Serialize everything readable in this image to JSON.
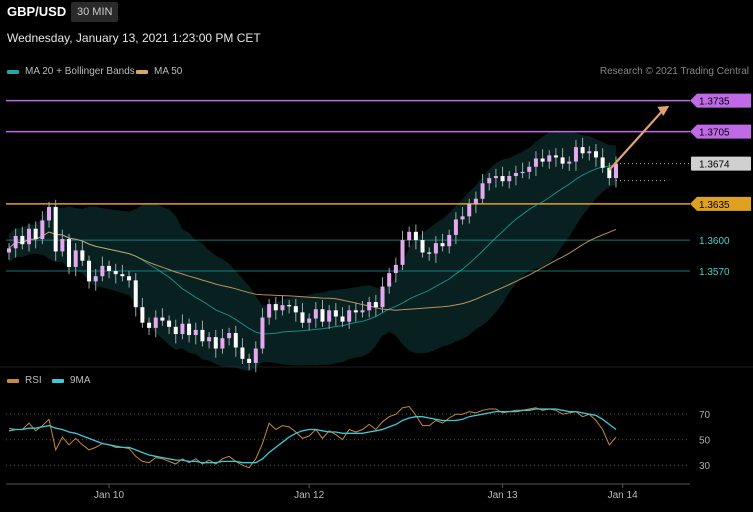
{
  "header": {
    "symbol": "GBP/USD",
    "timeframe": "30 MIN"
  },
  "timestamp": "Wednesday, January 13, 2021 1:23:00 PM CET",
  "legend": {
    "items": [
      {
        "label": "MA 20 + Bollinger Bands",
        "color": "#1aa9a3"
      },
      {
        "label": "MA 50",
        "color": "#d9a66b"
      }
    ],
    "credit": "Research © 2021 Trading Central"
  },
  "rsi_legend": {
    "items": [
      {
        "label": "RSI",
        "color": "#c8893f"
      },
      {
        "label": "9MA",
        "color": "#3cc9d8"
      }
    ]
  },
  "chart_data": [
    {
      "type": "candlestick",
      "title": "",
      "x_tick_labels": [
        "Jan 10",
        "Jan 12",
        "Jan 13",
        "Jan 14"
      ],
      "x_tick_index": [
        15,
        45,
        74,
        92
      ],
      "ylim": [
        1.348,
        1.3755
      ],
      "current_price": 1.3674,
      "levels": [
        {
          "value": 1.3735,
          "label": "1.3735",
          "type": "resistance",
          "color": "#c06ae8"
        },
        {
          "value": 1.3705,
          "label": "1.3705",
          "type": "resistance",
          "color": "#c06ae8"
        },
        {
          "value": 1.3674,
          "label": "1.3674",
          "type": "last",
          "color": "#d0d0d0"
        },
        {
          "value": 1.3635,
          "label": "1.3635",
          "type": "pivot",
          "color": "#e0a020"
        },
        {
          "value": 1.36,
          "label": "1.3600",
          "type": "support",
          "color": "#1aa9a3"
        },
        {
          "value": 1.357,
          "label": "1.3570",
          "type": "support",
          "color": "#1aa9a3"
        }
      ],
      "arrow": {
        "from_index": 90,
        "from_value": 1.3668,
        "to_index": 99,
        "to_value": 1.373
      },
      "closes": [
        1.3592,
        1.3604,
        1.3596,
        1.3611,
        1.3601,
        1.3619,
        1.3632,
        1.3589,
        1.3601,
        1.3574,
        1.359,
        1.358,
        1.356,
        1.3565,
        1.3575,
        1.357,
        1.3567,
        1.3565,
        1.3561,
        1.3535,
        1.352,
        1.3515,
        1.3525,
        1.3522,
        1.3516,
        1.3509,
        1.3519,
        1.3508,
        1.3513,
        1.3502,
        1.3506,
        1.3495,
        1.3505,
        1.351,
        1.3496,
        1.3485,
        1.3481,
        1.3495,
        1.3525,
        1.3538,
        1.3532,
        1.3537,
        1.3536,
        1.353,
        1.352,
        1.3524,
        1.3533,
        1.3521,
        1.3532,
        1.3526,
        1.3521,
        1.3532,
        1.353,
        1.3532,
        1.354,
        1.3535,
        1.3555,
        1.3568,
        1.3576,
        1.36,
        1.3608,
        1.36,
        1.3588,
        1.3587,
        1.3597,
        1.3594,
        1.3605,
        1.362,
        1.3623,
        1.3635,
        1.364,
        1.3655,
        1.366,
        1.3662,
        1.3657,
        1.3662,
        1.3665,
        1.3666,
        1.3671,
        1.3679,
        1.3676,
        1.3682,
        1.368,
        1.3674,
        1.3676,
        1.369,
        1.3684,
        1.3686,
        1.368,
        1.367,
        1.366,
        1.3674
      ]
    },
    {
      "type": "line",
      "title": "RSI",
      "ylim": [
        20,
        85
      ],
      "levels": [
        {
          "value": 70,
          "label": "70"
        },
        {
          "value": 50,
          "label": "50"
        },
        {
          "value": 30,
          "label": "30"
        }
      ],
      "series": [
        {
          "name": "RSI",
          "values": [
            59,
            58,
            58,
            63,
            57,
            61,
            66,
            42,
            52,
            46,
            51,
            46,
            42,
            44,
            47,
            46,
            44,
            44,
            43,
            37,
            33,
            32,
            36,
            35,
            33,
            31,
            35,
            32,
            35,
            31,
            34,
            31,
            35,
            37,
            33,
            30,
            28,
            35,
            47,
            63,
            58,
            61,
            60,
            56,
            51,
            53,
            58,
            51,
            57,
            54,
            50,
            58,
            56,
            58,
            62,
            58,
            64,
            68,
            70,
            75,
            76,
            69,
            61,
            61,
            65,
            63,
            67,
            70,
            70,
            72,
            71,
            73,
            74,
            74,
            71,
            72,
            73,
            73,
            74,
            75,
            73,
            74,
            73,
            70,
            71,
            72,
            68,
            70,
            65,
            58,
            46,
            52
          ]
        },
        {
          "name": "9MA",
          "values": [
            57,
            58,
            58,
            59,
            59,
            60,
            61,
            59,
            58,
            56,
            55,
            53,
            51,
            49,
            47,
            46,
            45,
            44,
            44,
            42,
            40,
            38,
            37,
            36,
            35,
            34,
            34,
            33,
            33,
            32,
            32,
            32,
            33,
            33,
            33,
            32,
            32,
            32,
            35,
            40,
            44,
            48,
            52,
            55,
            57,
            58,
            58,
            57,
            56,
            56,
            55,
            55,
            55,
            55,
            56,
            57,
            58,
            60,
            62,
            65,
            67,
            68,
            68,
            67,
            66,
            65,
            65,
            65,
            66,
            68,
            69,
            70,
            71,
            72,
            72,
            72,
            72,
            73,
            73,
            74,
            74,
            74,
            74,
            73,
            72,
            72,
            71,
            70,
            69,
            66,
            62,
            58
          ]
        }
      ]
    }
  ]
}
